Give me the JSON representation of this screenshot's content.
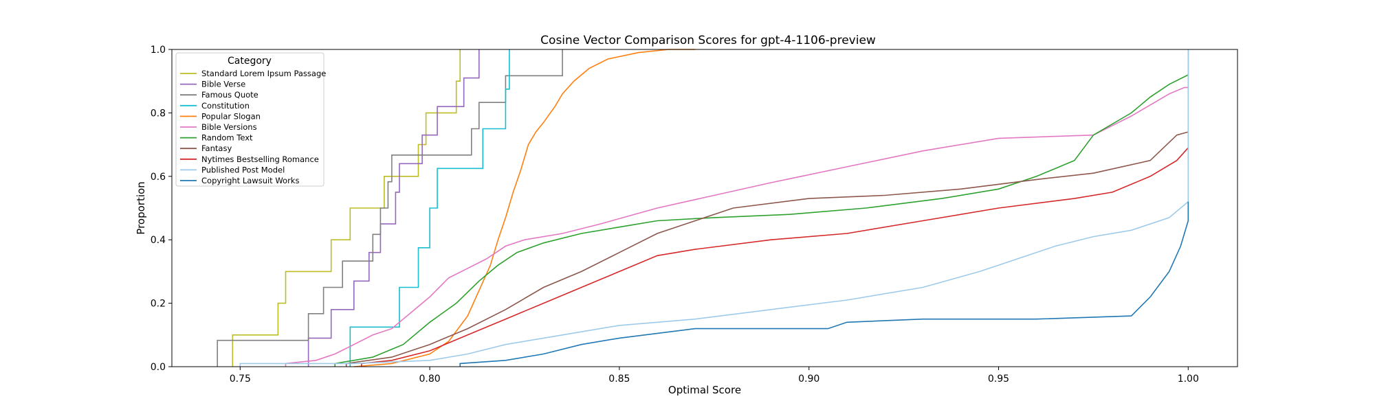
{
  "chart_data": {
    "type": "line",
    "title": "Cosine Vector Comparison Scores for gpt-4-1106-preview",
    "xlabel": "Optimal Score",
    "ylabel": "Proportion",
    "xlim": [
      0.732,
      1.013
    ],
    "ylim": [
      0.0,
      1.0
    ],
    "xticks": [
      0.75,
      0.8,
      0.85,
      0.9,
      0.95,
      1.0
    ],
    "xtick_labels": [
      "0.75",
      "0.80",
      "0.85",
      "0.90",
      "0.95",
      "1.00"
    ],
    "yticks": [
      0.0,
      0.2,
      0.4,
      0.6,
      0.8,
      1.0
    ],
    "ytick_labels": [
      "0.0",
      "0.2",
      "0.4",
      "0.6",
      "0.8",
      "1.0"
    ],
    "grid": false,
    "legend": {
      "title": "Category",
      "placement": "top-left"
    },
    "series": [
      {
        "name": "Standard Lorem Ipsum Passage",
        "color": "#bcbd22",
        "points": [
          [
            0.748,
            0.0
          ],
          [
            0.748,
            0.1
          ],
          [
            0.76,
            0.1
          ],
          [
            0.76,
            0.2
          ],
          [
            0.762,
            0.2
          ],
          [
            0.762,
            0.3
          ],
          [
            0.774,
            0.3
          ],
          [
            0.774,
            0.4
          ],
          [
            0.779,
            0.4
          ],
          [
            0.779,
            0.5
          ],
          [
            0.788,
            0.5
          ],
          [
            0.788,
            0.6
          ],
          [
            0.797,
            0.6
          ],
          [
            0.797,
            0.7
          ],
          [
            0.799,
            0.7
          ],
          [
            0.799,
            0.8
          ],
          [
            0.807,
            0.8
          ],
          [
            0.807,
            0.9
          ],
          [
            0.808,
            0.9
          ],
          [
            0.808,
            1.0
          ]
        ]
      },
      {
        "name": "Bible Verse",
        "color": "#9467bd",
        "points": [
          [
            0.768,
            0.0
          ],
          [
            0.768,
            0.09
          ],
          [
            0.774,
            0.09
          ],
          [
            0.774,
            0.18
          ],
          [
            0.78,
            0.18
          ],
          [
            0.78,
            0.27
          ],
          [
            0.784,
            0.27
          ],
          [
            0.784,
            0.36
          ],
          [
            0.787,
            0.36
          ],
          [
            0.787,
            0.45
          ],
          [
            0.791,
            0.45
          ],
          [
            0.791,
            0.55
          ],
          [
            0.792,
            0.55
          ],
          [
            0.792,
            0.64
          ],
          [
            0.798,
            0.64
          ],
          [
            0.798,
            0.73
          ],
          [
            0.802,
            0.73
          ],
          [
            0.802,
            0.82
          ],
          [
            0.809,
            0.82
          ],
          [
            0.809,
            0.91
          ],
          [
            0.813,
            0.91
          ],
          [
            0.813,
            1.0
          ]
        ]
      },
      {
        "name": "Famous Quote",
        "color": "#7f7f7f",
        "points": [
          [
            0.744,
            0.0
          ],
          [
            0.744,
            0.083
          ],
          [
            0.768,
            0.083
          ],
          [
            0.768,
            0.167
          ],
          [
            0.772,
            0.167
          ],
          [
            0.772,
            0.25
          ],
          [
            0.777,
            0.25
          ],
          [
            0.777,
            0.333
          ],
          [
            0.785,
            0.333
          ],
          [
            0.785,
            0.417
          ],
          [
            0.787,
            0.417
          ],
          [
            0.787,
            0.5
          ],
          [
            0.789,
            0.5
          ],
          [
            0.789,
            0.583
          ],
          [
            0.79,
            0.583
          ],
          [
            0.79,
            0.667
          ],
          [
            0.811,
            0.667
          ],
          [
            0.811,
            0.75
          ],
          [
            0.813,
            0.75
          ],
          [
            0.813,
            0.833
          ],
          [
            0.82,
            0.833
          ],
          [
            0.82,
            0.917
          ],
          [
            0.835,
            0.917
          ],
          [
            0.835,
            1.0
          ]
        ]
      },
      {
        "name": "Constitution",
        "color": "#17becf",
        "points": [
          [
            0.779,
            0.0
          ],
          [
            0.779,
            0.125
          ],
          [
            0.792,
            0.125
          ],
          [
            0.792,
            0.25
          ],
          [
            0.797,
            0.25
          ],
          [
            0.797,
            0.375
          ],
          [
            0.8,
            0.375
          ],
          [
            0.8,
            0.5
          ],
          [
            0.802,
            0.5
          ],
          [
            0.802,
            0.625
          ],
          [
            0.814,
            0.625
          ],
          [
            0.814,
            0.75
          ],
          [
            0.82,
            0.75
          ],
          [
            0.82,
            0.875
          ],
          [
            0.821,
            0.875
          ],
          [
            0.821,
            1.0
          ]
        ]
      },
      {
        "name": "Popular Slogan",
        "color": "#ff7f0e",
        "points": [
          [
            0.78,
            0.0
          ],
          [
            0.79,
            0.01
          ],
          [
            0.8,
            0.04
          ],
          [
            0.805,
            0.08
          ],
          [
            0.81,
            0.16
          ],
          [
            0.813,
            0.24
          ],
          [
            0.816,
            0.32
          ],
          [
            0.818,
            0.4
          ],
          [
            0.82,
            0.47
          ],
          [
            0.822,
            0.55
          ],
          [
            0.824,
            0.62
          ],
          [
            0.826,
            0.7
          ],
          [
            0.828,
            0.74
          ],
          [
            0.83,
            0.77
          ],
          [
            0.833,
            0.82
          ],
          [
            0.835,
            0.86
          ],
          [
            0.838,
            0.9
          ],
          [
            0.842,
            0.94
          ],
          [
            0.847,
            0.97
          ],
          [
            0.855,
            0.99
          ],
          [
            0.863,
            1.0
          ],
          [
            0.87,
            1.0
          ]
        ]
      },
      {
        "name": "Bible Versions",
        "color": "#e377c2",
        "points": [
          [
            0.762,
            0.0
          ],
          [
            0.762,
            0.01
          ],
          [
            0.77,
            0.02
          ],
          [
            0.775,
            0.04
          ],
          [
            0.78,
            0.07
          ],
          [
            0.785,
            0.1
          ],
          [
            0.79,
            0.12
          ],
          [
            0.795,
            0.17
          ],
          [
            0.8,
            0.22
          ],
          [
            0.805,
            0.28
          ],
          [
            0.81,
            0.31
          ],
          [
            0.815,
            0.34
          ],
          [
            0.82,
            0.38
          ],
          [
            0.825,
            0.4
          ],
          [
            0.835,
            0.42
          ],
          [
            0.845,
            0.45
          ],
          [
            0.86,
            0.5
          ],
          [
            0.875,
            0.54
          ],
          [
            0.89,
            0.58
          ],
          [
            0.91,
            0.63
          ],
          [
            0.93,
            0.68
          ],
          [
            0.95,
            0.72
          ],
          [
            0.975,
            0.73
          ],
          [
            0.985,
            0.79
          ],
          [
            0.995,
            0.86
          ],
          [
            0.999,
            0.88
          ],
          [
            1.0,
            0.88
          ],
          [
            1.0,
            1.0
          ]
        ]
      },
      {
        "name": "Random Text",
        "color": "#2ca02c",
        "points": [
          [
            0.775,
            0.0
          ],
          [
            0.775,
            0.01
          ],
          [
            0.785,
            0.03
          ],
          [
            0.793,
            0.07
          ],
          [
            0.8,
            0.14
          ],
          [
            0.807,
            0.2
          ],
          [
            0.813,
            0.27
          ],
          [
            0.818,
            0.32
          ],
          [
            0.823,
            0.36
          ],
          [
            0.83,
            0.39
          ],
          [
            0.84,
            0.42
          ],
          [
            0.85,
            0.44
          ],
          [
            0.86,
            0.46
          ],
          [
            0.875,
            0.47
          ],
          [
            0.895,
            0.48
          ],
          [
            0.915,
            0.5
          ],
          [
            0.935,
            0.53
          ],
          [
            0.95,
            0.56
          ],
          [
            0.96,
            0.6
          ],
          [
            0.97,
            0.65
          ],
          [
            0.975,
            0.73
          ],
          [
            0.985,
            0.8
          ],
          [
            0.99,
            0.85
          ],
          [
            0.995,
            0.89
          ],
          [
            1.0,
            0.92
          ],
          [
            1.0,
            1.0
          ]
        ]
      },
      {
        "name": "Fantasy",
        "color": "#8c564b",
        "points": [
          [
            0.778,
            0.0
          ],
          [
            0.778,
            0.01
          ],
          [
            0.79,
            0.03
          ],
          [
            0.8,
            0.07
          ],
          [
            0.81,
            0.12
          ],
          [
            0.82,
            0.18
          ],
          [
            0.83,
            0.25
          ],
          [
            0.84,
            0.3
          ],
          [
            0.85,
            0.36
          ],
          [
            0.86,
            0.42
          ],
          [
            0.87,
            0.46
          ],
          [
            0.88,
            0.5
          ],
          [
            0.9,
            0.53
          ],
          [
            0.92,
            0.54
          ],
          [
            0.94,
            0.56
          ],
          [
            0.96,
            0.59
          ],
          [
            0.975,
            0.61
          ],
          [
            0.99,
            0.65
          ],
          [
            0.997,
            0.73
          ],
          [
            1.0,
            0.74
          ]
        ]
      },
      {
        "name": "Nytimes Bestselling Romance",
        "color": "#d62728",
        "points": [
          [
            0.782,
            0.0
          ],
          [
            0.782,
            0.01
          ],
          [
            0.79,
            0.02
          ],
          [
            0.8,
            0.05
          ],
          [
            0.81,
            0.1
          ],
          [
            0.82,
            0.15
          ],
          [
            0.83,
            0.2
          ],
          [
            0.84,
            0.25
          ],
          [
            0.85,
            0.3
          ],
          [
            0.86,
            0.35
          ],
          [
            0.87,
            0.37
          ],
          [
            0.89,
            0.4
          ],
          [
            0.91,
            0.42
          ],
          [
            0.93,
            0.46
          ],
          [
            0.95,
            0.5
          ],
          [
            0.97,
            0.53
          ],
          [
            0.98,
            0.55
          ],
          [
            0.99,
            0.6
          ],
          [
            0.997,
            0.65
          ],
          [
            1.0,
            0.69
          ]
        ]
      },
      {
        "name": "Published Post Model",
        "color": "#9ecae9",
        "points": [
          [
            0.75,
            0.0
          ],
          [
            0.75,
            0.01
          ],
          [
            0.78,
            0.01
          ],
          [
            0.8,
            0.02
          ],
          [
            0.81,
            0.04
          ],
          [
            0.82,
            0.07
          ],
          [
            0.835,
            0.1
          ],
          [
            0.85,
            0.13
          ],
          [
            0.87,
            0.15
          ],
          [
            0.89,
            0.18
          ],
          [
            0.91,
            0.21
          ],
          [
            0.93,
            0.25
          ],
          [
            0.945,
            0.3
          ],
          [
            0.955,
            0.34
          ],
          [
            0.965,
            0.38
          ],
          [
            0.975,
            0.41
          ],
          [
            0.985,
            0.43
          ],
          [
            0.995,
            0.47
          ],
          [
            1.0,
            0.52
          ],
          [
            1.0,
            0.75
          ],
          [
            1.0,
            1.0
          ]
        ]
      },
      {
        "name": "Copyright Lawsuit Works",
        "color": "#1f77b4",
        "points": [
          [
            0.808,
            0.0
          ],
          [
            0.808,
            0.01
          ],
          [
            0.82,
            0.02
          ],
          [
            0.83,
            0.04
          ],
          [
            0.84,
            0.07
          ],
          [
            0.85,
            0.09
          ],
          [
            0.87,
            0.12
          ],
          [
            0.905,
            0.12
          ],
          [
            0.91,
            0.14
          ],
          [
            0.93,
            0.15
          ],
          [
            0.96,
            0.15
          ],
          [
            0.985,
            0.16
          ],
          [
            0.99,
            0.22
          ],
          [
            0.995,
            0.3
          ],
          [
            0.998,
            0.38
          ],
          [
            1.0,
            0.46
          ],
          [
            1.0,
            0.52
          ]
        ]
      }
    ]
  }
}
